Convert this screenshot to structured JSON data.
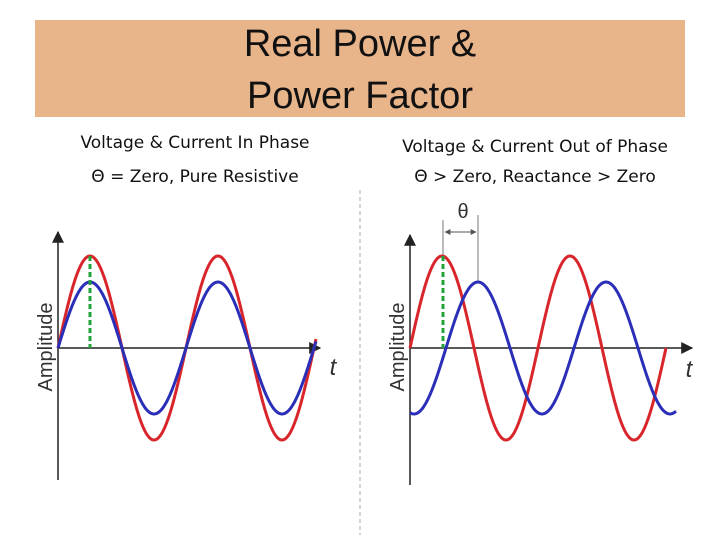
{
  "header": {
    "title_lines": [
      "Real Power &",
      "Power Factor"
    ]
  },
  "panels": [
    {
      "caption_lines": [
        "Voltage & Current In Phase",
        "Θ = Zero, Pure Resistive"
      ],
      "y_axis_label": "Amplitude",
      "x_axis_label": "t"
    },
    {
      "caption_lines": [
        "Voltage & Current Out of Phase",
        "Θ > Zero, Reactance > Zero"
      ],
      "y_axis_label": "Amplitude",
      "x_axis_label": "t",
      "angle_label": "θ"
    }
  ]
}
